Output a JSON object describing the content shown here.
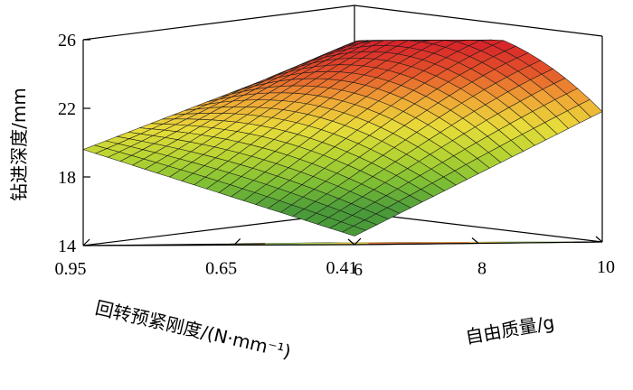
{
  "chart_data": {
    "type": "surface3d",
    "title": "",
    "z_axis": {
      "label": "钻进深度/mm",
      "ticks": [
        "14",
        "18",
        "22",
        "26"
      ],
      "range": [
        14,
        26
      ]
    },
    "x_axis": {
      "label": "自由质量/g",
      "ticks": [
        "6",
        "8",
        "10"
      ],
      "range": [
        6,
        10
      ]
    },
    "y_axis": {
      "label": "回转预紧刚度/(N·mm⁻¹)",
      "ticks": [
        "0.95",
        "0.65",
        "0.41"
      ],
      "range": [
        0.41,
        0.95
      ]
    },
    "surface_model": {
      "description_free": true,
      "peak": {
        "x": 9.6,
        "y": 0.55,
        "z": 25.2
      },
      "corner_values": [
        {
          "x": 6,
          "y": 0.41,
          "z": 14.5
        },
        {
          "x": 6,
          "y": 0.95,
          "z": 19.6
        },
        {
          "x": 10,
          "y": 0.41,
          "z": 21.6
        },
        {
          "x": 10,
          "y": 0.95,
          "z": 25.0
        }
      ]
    },
    "colormap": [
      "#4a9a3a",
      "#7fbf35",
      "#b7d432",
      "#e8dc3a",
      "#f0a836",
      "#e4552a",
      "#d8262a"
    ],
    "floor_color": "#e8e84a",
    "grid": false,
    "legend": "none"
  }
}
